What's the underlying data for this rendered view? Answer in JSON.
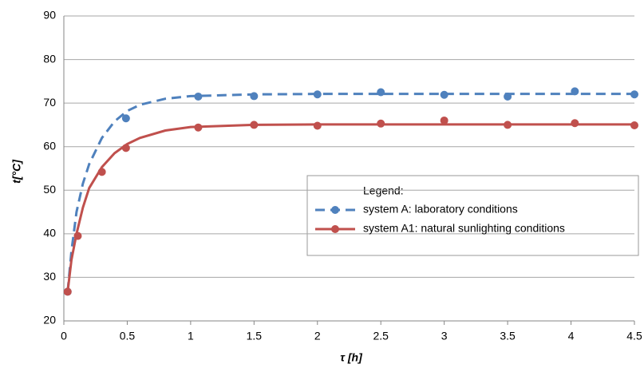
{
  "chart_data": {
    "type": "line",
    "x_label": "τ [h]",
    "y_label": "t[°C]",
    "xlim": [
      0,
      4.5
    ],
    "xticks": [
      0,
      0.5,
      1,
      1.5,
      2,
      2.5,
      3,
      3.5,
      4,
      4.5
    ],
    "ylim": [
      20,
      90
    ],
    "yticks": [
      20,
      30,
      40,
      50,
      60,
      70,
      80,
      90
    ],
    "grid": true,
    "legend_title": "Legend:",
    "series": [
      {
        "name": "system A: laboratory conditions",
        "color": "#4f81bd",
        "dashed": true,
        "x": [
          0.03,
          0.49,
          1.06,
          1.5,
          2.0,
          2.5,
          3.0,
          3.5,
          4.03,
          4.5
        ],
        "values": [
          26.7,
          66.5,
          71.5,
          71.6,
          72.0,
          72.5,
          71.9,
          71.5,
          72.7,
          72.0
        ],
        "fit": {
          "x": [
            0.03,
            0.06,
            0.1,
            0.15,
            0.2,
            0.3,
            0.4,
            0.5,
            0.6,
            0.8,
            1.0,
            1.5,
            2,
            3,
            4,
            4.5
          ],
          "values": [
            26.7,
            36,
            45,
            51.5,
            56,
            62,
            65.8,
            68.2,
            69.6,
            71,
            71.6,
            72,
            72.1,
            72.1,
            72.1,
            72.1
          ]
        }
      },
      {
        "name": "system A1: natural sunlighting conditions",
        "color": "#c0504d",
        "dashed": false,
        "x": [
          0.03,
          0.11,
          0.3,
          0.49,
          1.06,
          1.5,
          2.0,
          2.5,
          3.0,
          3.5,
          4.03,
          4.5
        ],
        "values": [
          26.7,
          39.5,
          54.2,
          59.7,
          64.4,
          65.0,
          64.8,
          65.3,
          66.0,
          65.0,
          65.4,
          64.9
        ],
        "fit": {
          "x": [
            0.03,
            0.06,
            0.1,
            0.15,
            0.2,
            0.3,
            0.4,
            0.5,
            0.6,
            0.8,
            1.0,
            1.5,
            2,
            3,
            4,
            4.5
          ],
          "values": [
            26.7,
            34,
            40,
            46,
            50.5,
            55.3,
            58.5,
            60.6,
            62,
            63.7,
            64.5,
            65,
            65.1,
            65.1,
            65.1,
            65.1
          ]
        }
      }
    ]
  }
}
